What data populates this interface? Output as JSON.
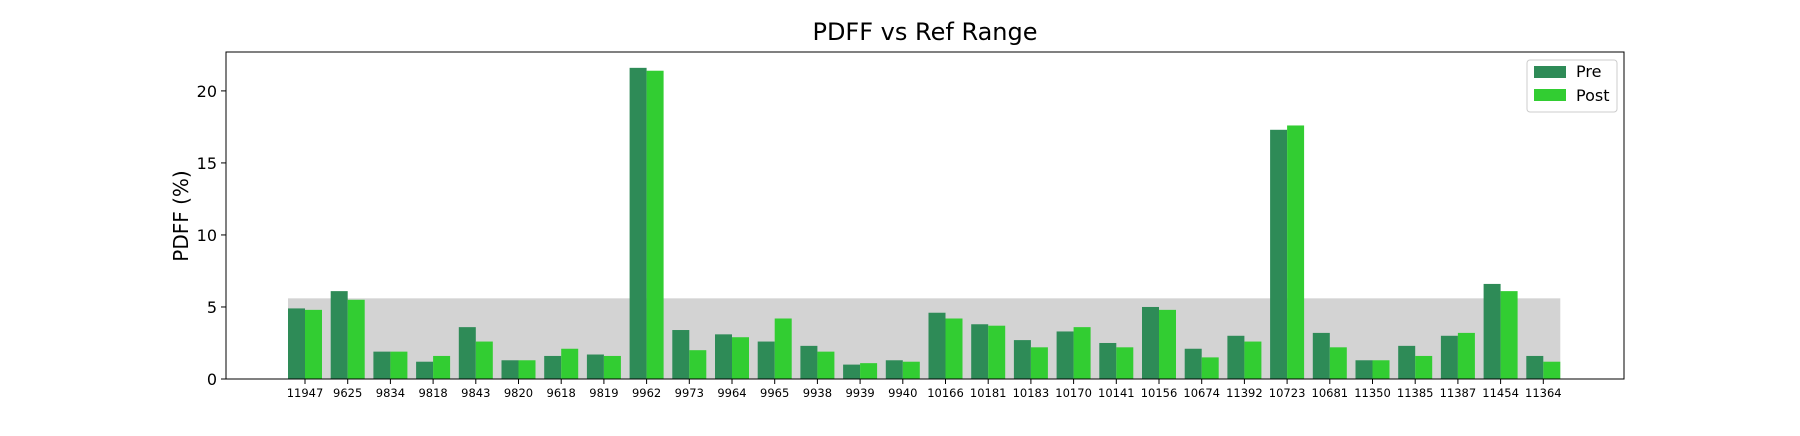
{
  "chart_data": {
    "type": "bar",
    "title": "PDFF vs Ref Range",
    "xlabel": "",
    "ylabel": "PDFF (%)",
    "categories": [
      "11947",
      "9625",
      "9834",
      "9818",
      "9843",
      "9820",
      "9618",
      "9819",
      "9962",
      "9973",
      "9964",
      "9965",
      "9938",
      "9939",
      "9940",
      "10166",
      "10181",
      "10183",
      "10170",
      "10141",
      "10156",
      "10674",
      "11392",
      "10723",
      "10681",
      "11350",
      "11385",
      "11387",
      "11454",
      "11364"
    ],
    "series": [
      {
        "name": "Pre",
        "color": "#2e8b57",
        "values": [
          4.9,
          6.1,
          1.9,
          1.2,
          3.6,
          1.3,
          1.6,
          1.7,
          21.6,
          3.4,
          3.1,
          2.6,
          2.3,
          1.0,
          1.3,
          4.6,
          3.8,
          2.7,
          3.3,
          2.5,
          5.0,
          2.1,
          3.0,
          17.3,
          3.2,
          1.3,
          2.3,
          3.0,
          6.6,
          1.6
        ]
      },
      {
        "name": "Post",
        "color": "#32cd32",
        "values": [
          4.8,
          5.5,
          1.9,
          1.6,
          2.6,
          1.3,
          2.1,
          1.6,
          21.4,
          2.0,
          2.9,
          4.2,
          1.9,
          1.1,
          1.2,
          4.2,
          3.7,
          2.2,
          3.6,
          2.2,
          4.8,
          1.5,
          2.6,
          17.6,
          2.2,
          1.3,
          1.6,
          3.2,
          6.1,
          1.2
        ]
      }
    ],
    "ref_range": [
      0,
      5.6
    ],
    "ref_range_color": "#d3d3d3",
    "ylim": [
      0,
      22.7
    ],
    "yticks": [
      0,
      5,
      10,
      15,
      20
    ],
    "grid": false,
    "legend_position": "top-right"
  }
}
